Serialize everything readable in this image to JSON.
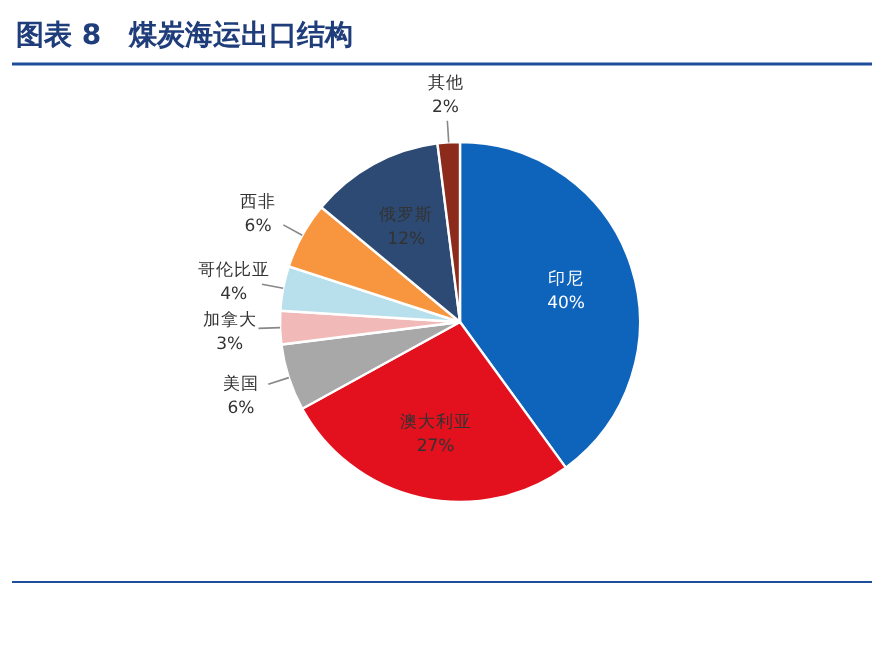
{
  "chart_data": {
    "type": "pie",
    "title": "图表 8　煤炭海运出口结构",
    "categories": [
      "印尼",
      "澳大利亚",
      "美国",
      "加拿大",
      "哥伦比亚",
      "西非",
      "俄罗斯",
      "其他"
    ],
    "values": [
      40,
      27,
      6,
      3,
      4,
      6,
      12,
      2
    ],
    "colors": [
      "#0e64bb",
      "#e3101e",
      "#a8a8a8",
      "#f2b9b9",
      "#b8dfec",
      "#f7963f",
      "#2c4a73",
      "#8c2a1c"
    ],
    "value_labels": [
      "40%",
      "27%",
      "6%",
      "3%",
      "4%",
      "6%",
      "12%",
      "2%"
    ]
  }
}
